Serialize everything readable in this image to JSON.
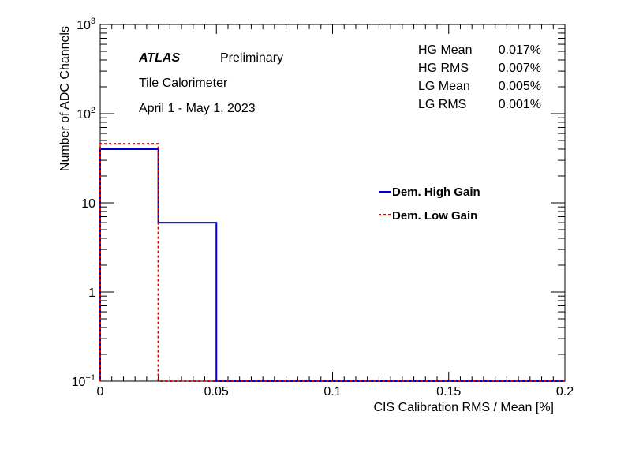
{
  "chart_data": {
    "type": "histogram",
    "x_scale": "linear",
    "y_scale": "log",
    "xlim": [
      0,
      0.2
    ],
    "ylim": [
      0.1,
      1000
    ],
    "xlabel": "CIS Calibration RMS / Mean [%]",
    "ylabel": "Number of ADC Channels",
    "x_ticks": [
      {
        "value": 0,
        "label": "0"
      },
      {
        "value": 0.05,
        "label": "0.05"
      },
      {
        "value": 0.1,
        "label": "0.1"
      },
      {
        "value": 0.15,
        "label": "0.15"
      },
      {
        "value": 0.2,
        "label": "0.2"
      }
    ],
    "y_ticks": [
      {
        "value": 0.1,
        "label": "10",
        "sup": "−1"
      },
      {
        "value": 1,
        "label": "1",
        "sup": ""
      },
      {
        "value": 10,
        "label": "10",
        "sup": ""
      },
      {
        "value": 100,
        "label": "10",
        "sup": "2"
      },
      {
        "value": 1000,
        "label": "10",
        "sup": "3"
      }
    ],
    "bin_edges": [
      0,
      0.025,
      0.05,
      0.075,
      0.1,
      0.125,
      0.15,
      0.175,
      0.2
    ],
    "series": [
      {
        "name": "Dem. High Gain",
        "color": "#0000cc",
        "style": "solid",
        "counts": [
          40,
          6,
          0,
          0,
          0,
          0,
          0,
          0
        ]
      },
      {
        "name": "Dem. Low Gain",
        "color": "#dd0000",
        "style": "dotted",
        "counts": [
          46,
          0,
          0,
          0,
          0,
          0,
          0,
          0
        ]
      }
    ],
    "legend_position": "right-middle",
    "grid": false
  },
  "annotations": {
    "atlas": "ATLAS",
    "preliminary": "Preliminary",
    "detector": "Tile Calorimeter",
    "period": "April 1 - May 1, 2023"
  },
  "stats": [
    {
      "label": "HG Mean",
      "value": "0.017%"
    },
    {
      "label": "HG RMS",
      "value": "0.007%"
    },
    {
      "label": "LG Mean",
      "value": "0.005%"
    },
    {
      "label": "LG RMS",
      "value": "0.001%"
    }
  ]
}
